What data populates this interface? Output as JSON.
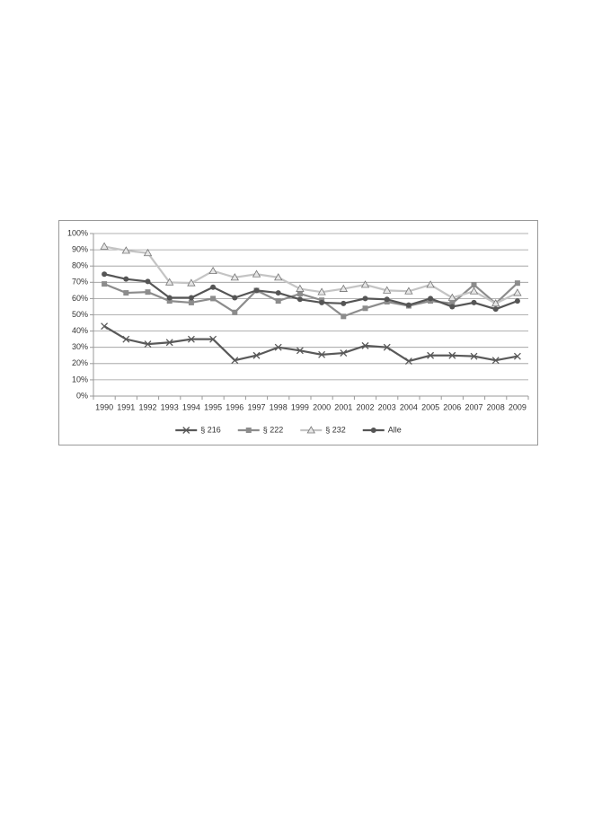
{
  "chart_data": {
    "type": "line",
    "categories": [
      "1990",
      "1991",
      "1992",
      "1993",
      "1994",
      "1995",
      "1996",
      "1997",
      "1998",
      "1999",
      "2000",
      "2001",
      "2002",
      "2003",
      "2004",
      "2005",
      "2006",
      "2007",
      "2008",
      "2009"
    ],
    "series": [
      {
        "name": "§ 216",
        "color": "#595959",
        "marker": "x",
        "values": [
          43,
          35,
          32,
          33,
          35,
          35,
          22,
          25,
          30,
          28,
          25.5,
          26.5,
          31,
          30,
          21.5,
          25,
          25,
          24.5,
          22,
          24.5
        ]
      },
      {
        "name": "§ 222",
        "color": "#8c8c8c",
        "marker": "square",
        "values": [
          69,
          63.5,
          64,
          58.5,
          57.5,
          60,
          51.5,
          65,
          58.5,
          63,
          59,
          49,
          54,
          58,
          55.5,
          58.5,
          57,
          68.5,
          57,
          69.5
        ]
      },
      {
        "name": "§ 232",
        "color": "#c4c4c4",
        "marker": "triangle",
        "values": [
          92,
          89.5,
          88,
          70,
          69.5,
          77,
          73,
          75,
          73,
          66,
          64,
          66,
          68.5,
          65,
          64.5,
          68.5,
          60.5,
          64.5,
          57,
          63.5
        ]
      },
      {
        "name": "Alle",
        "color": "#555555",
        "marker": "circle",
        "values": [
          75,
          72,
          70.5,
          60.5,
          60.5,
          67,
          60.5,
          65,
          63.5,
          59.5,
          57.5,
          57,
          60,
          59.5,
          56,
          60,
          55,
          57.5,
          53.5,
          58.5
        ]
      }
    ],
    "ylim": [
      0,
      100
    ],
    "yticks": [
      {
        "value": 0,
        "label": "0%"
      },
      {
        "value": 10,
        "label": "10%"
      },
      {
        "value": 20,
        "label": "20%"
      },
      {
        "value": 30,
        "label": "30%"
      },
      {
        "value": 40,
        "label": "40%"
      },
      {
        "value": 50,
        "label": "50%"
      },
      {
        "value": 60,
        "label": "60%"
      },
      {
        "value": 70,
        "label": "70%"
      },
      {
        "value": 80,
        "label": "80%"
      },
      {
        "value": 90,
        "label": "90%"
      },
      {
        "value": 100,
        "label": "100%"
      }
    ],
    "grid": true,
    "legend": "bottom"
  }
}
